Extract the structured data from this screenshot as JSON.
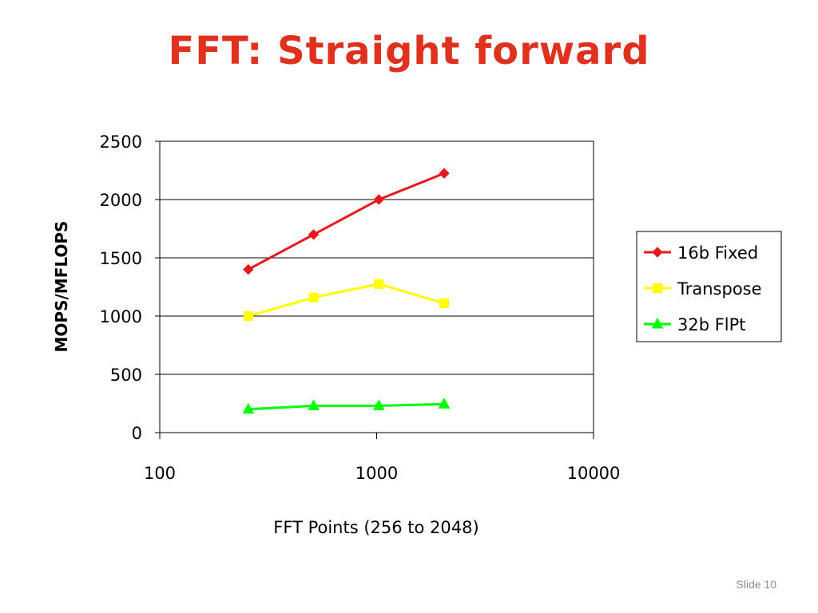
{
  "slide": {
    "title": "FFT: Straight forward",
    "footer_prefix": "Slide",
    "footer_number": "10"
  },
  "chart_data": {
    "type": "line",
    "title": "",
    "xlabel": "FFT Points (256 to 2048)",
    "ylabel": "MOPS/MFLOPS",
    "x_scale": "log",
    "xlim": [
      100,
      10000
    ],
    "ylim": [
      0,
      2500
    ],
    "x_ticks": [
      "100",
      "1000",
      "10000"
    ],
    "y_ticks": [
      "0",
      "500",
      "1000",
      "1500",
      "2000",
      "2500"
    ],
    "grid": "horizontal",
    "legend_position": "right",
    "x": [
      256,
      512,
      1024,
      2048
    ],
    "series": [
      {
        "name": "16b Fixed",
        "values": [
          1400,
          1700,
          2000,
          2225
        ],
        "color": "#e8191d",
        "marker": "diamond"
      },
      {
        "name": "Transpose",
        "values": [
          1000,
          1160,
          1275,
          1110
        ],
        "color": "#ffff00",
        "marker": "square"
      },
      {
        "name": "32b FlPt",
        "values": [
          200,
          230,
          230,
          245
        ],
        "color": "#00ff00",
        "marker": "triangle"
      }
    ]
  }
}
